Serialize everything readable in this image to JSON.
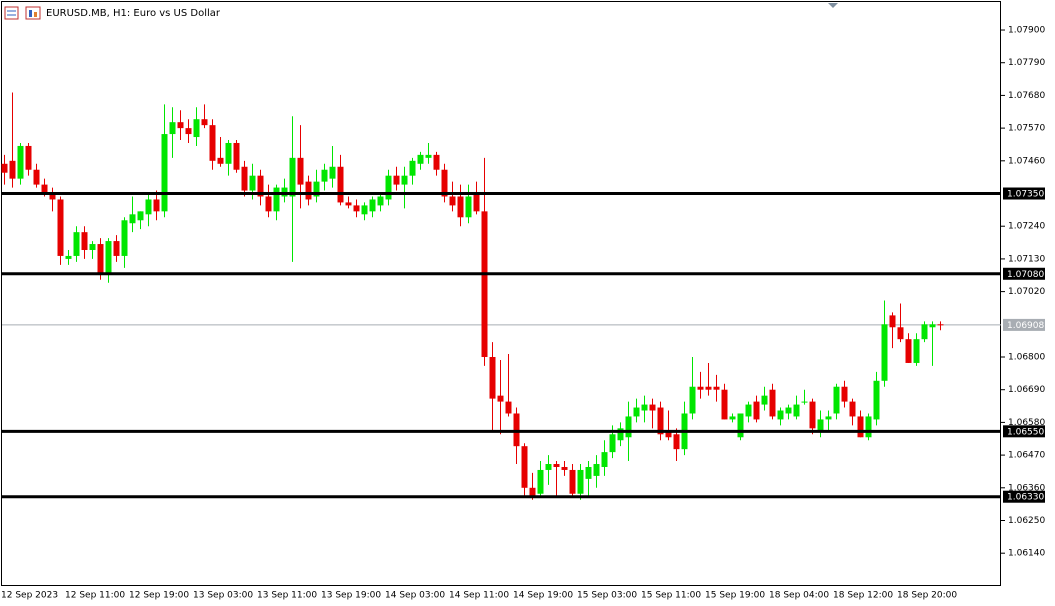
{
  "chart_data": {
    "type": "candlestick",
    "title": "EURUSD.MB, H1:  Euro vs US Dollar",
    "up_color": "#00e600",
    "down_color": "#e60000",
    "grid": false,
    "categories": [
      "12 Sep 2023",
      null,
      null,
      null,
      null,
      null,
      null,
      null,
      "12 Sep 11:00",
      null,
      null,
      null,
      null,
      null,
      null,
      null,
      "12 Sep 19:00",
      null,
      null,
      null,
      null,
      null,
      null,
      null,
      "13 Sep 03:00",
      null,
      null,
      null,
      null,
      null,
      null,
      null,
      "13 Sep 11:00",
      null,
      null,
      null,
      null,
      null,
      null,
      null,
      "13 Sep 19:00",
      null,
      null,
      null,
      null,
      null,
      null,
      null,
      "14 Sep 03:00",
      null,
      null,
      null,
      null,
      null,
      null,
      null,
      "14 Sep 11:00",
      null,
      null,
      null,
      null,
      null,
      null,
      null,
      "14 Sep 19:00",
      null,
      null,
      null,
      null,
      null,
      null,
      null,
      "15 Sep 03:00",
      null,
      null,
      null,
      null,
      null,
      null,
      null,
      "15 Sep 11:00",
      null,
      null,
      null,
      null,
      null,
      null,
      null,
      "15 Sep 19:00",
      null,
      null,
      null,
      null,
      null,
      null,
      null,
      "18 Sep 04:00",
      null,
      null,
      null,
      null,
      null,
      null,
      null,
      "18 Sep 12:00",
      null,
      null,
      null,
      null,
      null,
      null,
      null,
      "18 Sep 20:00",
      null,
      null,
      null,
      null,
      null
    ],
    "open": [
      1.0745,
      1.0746,
      1.074,
      1.0751,
      1.0743,
      1.0738,
      1.0735,
      1.0733,
      1.0713,
      1.0714,
      1.0722,
      1.0716,
      1.0718,
      1.0708,
      1.0719,
      1.0714,
      1.0725,
      1.0726,
      1.0728,
      1.0733,
      1.0729,
      1.0755,
      1.0759,
      1.0757,
      1.0754,
      1.076,
      1.0758,
      1.0747,
      1.0745,
      1.0752,
      1.0744,
      1.0736,
      1.0741,
      1.0734,
      1.0729,
      1.0734,
      1.0734,
      1.0747,
      1.0739,
      1.0734,
      1.0739,
      1.074,
      1.0744,
      1.0732,
      1.0731,
      1.0728,
      1.0729,
      1.0731,
      1.0733,
      1.0741,
      1.0738,
      1.0741,
      1.0745,
      1.0747,
      1.0748,
      1.0743,
      1.0734,
      1.0734,
      1.0727,
      1.0735,
      1.0729,
      1.068,
      1.0667,
      1.0665,
      1.0661,
      1.065,
      1.0636,
      1.0634,
      1.0642,
      1.0644,
      1.0643,
      1.0642,
      1.0634,
      1.0639,
      1.064,
      1.0643,
      1.0648,
      1.0652,
      1.0653,
      1.066,
      1.0662,
      1.0664,
      1.0663,
      1.0655,
      1.0654,
      1.0649,
      1.0661,
      1.067,
      1.067,
      1.067,
      1.0669,
      1.0659,
      1.0653,
      1.066,
      1.0665,
      1.0664,
      1.0669,
      1.0659,
      1.0661,
      1.066,
      1.0665,
      1.0665,
      1.0655,
      1.0659,
      1.0661,
      1.067,
      1.0665,
      1.066,
      1.0653,
      1.0659,
      1.0672,
      1.0694,
      1.069,
      1.0686,
      1.0678,
      1.0686,
      1.069,
      1.0691
    ],
    "high": [
      1.0748,
      1.0769,
      1.0752,
      1.0752,
      1.0745,
      1.074,
      1.0737,
      1.0734,
      1.0716,
      1.0724,
      1.0724,
      1.0719,
      1.072,
      1.072,
      1.0721,
      1.0727,
      1.0734,
      1.0729,
      1.0735,
      1.0736,
      1.0765,
      1.0764,
      1.0763,
      1.076,
      1.0764,
      1.0765,
      1.076,
      1.0754,
      1.0753,
      1.0753,
      1.0746,
      1.0745,
      1.0743,
      1.0738,
      1.0738,
      1.074,
      1.0761,
      1.0758,
      1.0741,
      1.0743,
      1.0745,
      1.0751,
      1.0748,
      1.0734,
      1.0733,
      1.0732,
      1.0734,
      1.0735,
      1.0743,
      1.0744,
      1.0744,
      1.0747,
      1.0749,
      1.0752,
      1.0749,
      1.0745,
      1.0739,
      1.0738,
      1.0738,
      1.0739,
      1.0747,
      1.0685,
      1.0679,
      1.0681,
      1.0663,
      1.0651,
      1.0641,
      1.0645,
      1.0647,
      1.0645,
      1.0645,
      1.0644,
      1.0644,
      1.0645,
      1.0647,
      1.0652,
      1.0657,
      1.0658,
      1.0665,
      1.0666,
      1.0667,
      1.0666,
      1.0665,
      1.0662,
      1.0656,
      1.0665,
      1.068,
      1.0675,
      1.0678,
      1.0674,
      1.0671,
      1.0661,
      1.0661,
      1.0665,
      1.0667,
      1.067,
      1.0671,
      1.0663,
      1.0664,
      1.0667,
      1.0669,
      1.0666,
      1.0662,
      1.0662,
      1.0671,
      1.0672,
      1.0666,
      1.0662,
      1.0661,
      1.0675,
      1.0699,
      1.0695,
      1.0698,
      1.0688,
      1.0688,
      1.0692,
      1.0692,
      1.0692
    ],
    "low": [
      1.0738,
      1.0737,
      1.0738,
      1.0741,
      1.0737,
      1.0734,
      1.0729,
      1.0711,
      1.0711,
      1.0712,
      1.0713,
      1.0713,
      1.0706,
      1.0705,
      1.0712,
      1.071,
      1.0722,
      1.0723,
      1.0724,
      1.0726,
      1.0727,
      1.0747,
      1.0753,
      1.0752,
      1.0751,
      1.0757,
      1.0743,
      1.0744,
      1.0741,
      1.0742,
      1.0734,
      1.0733,
      1.0731,
      1.0727,
      1.0726,
      1.0732,
      1.0712,
      1.073,
      1.0731,
      1.0732,
      1.0736,
      1.0737,
      1.0731,
      1.073,
      1.0727,
      1.0726,
      1.0727,
      1.0729,
      1.0731,
      1.0736,
      1.073,
      1.0738,
      1.0743,
      1.0745,
      1.0741,
      1.0732,
      1.0729,
      1.0724,
      1.0725,
      1.0728,
      1.0677,
      1.0655,
      1.0654,
      1.066,
      1.0644,
      1.0633,
      1.0632,
      1.0633,
      1.0637,
      1.0633,
      1.064,
      1.0633,
      1.0632,
      1.0633,
      1.0636,
      1.064,
      1.0646,
      1.065,
      1.0645,
      1.0658,
      1.0658,
      1.0656,
      1.0652,
      1.0652,
      1.0645,
      1.0647,
      1.0659,
      1.0666,
      1.0667,
      1.0665,
      1.0659,
      1.0658,
      1.0652,
      1.0658,
      1.0658,
      1.0662,
      1.0659,
      1.0657,
      1.0659,
      1.0659,
      1.0664,
      1.0654,
      1.0653,
      1.0655,
      1.0659,
      1.0663,
      1.0657,
      1.0653,
      1.0652,
      1.0657,
      1.067,
      1.0683,
      1.0685,
      1.0678,
      1.0677,
      1.0685,
      1.0677,
      1.0689
    ],
    "close": [
      1.0742,
      1.074,
      1.0751,
      1.0743,
      1.0738,
      1.0735,
      1.0733,
      1.0714,
      1.0714,
      1.0722,
      1.0716,
      1.0718,
      1.0708,
      1.0719,
      1.0714,
      1.0726,
      1.0728,
      1.0729,
      1.0733,
      1.0729,
      1.0755,
      1.0759,
      1.0757,
      1.0755,
      1.076,
      1.0758,
      1.0746,
      1.0745,
      1.0752,
      1.0743,
      1.0736,
      1.0741,
      1.0734,
      1.0729,
      1.0737,
      1.0737,
      1.0747,
      1.0738,
      1.0733,
      1.0739,
      1.0743,
      1.0744,
      1.0732,
      1.0731,
      1.0729,
      1.0731,
      1.0733,
      1.0734,
      1.0741,
      1.0738,
      1.0741,
      1.0746,
      1.0748,
      1.0748,
      1.0743,
      1.0734,
      1.0731,
      1.0727,
      1.0734,
      1.0729,
      1.068,
      1.0666,
      1.0665,
      1.0661,
      1.065,
      1.0636,
      1.0633,
      1.0642,
      1.0644,
      1.0643,
      1.0642,
      1.0634,
      1.0642,
      1.0643,
      1.0644,
      1.0648,
      1.0654,
      1.0656,
      1.066,
      1.0663,
      1.0664,
      1.0662,
      1.0654,
      1.0653,
      1.0649,
      1.0661,
      1.067,
      1.0669,
      1.0669,
      1.0669,
      1.0659,
      1.066,
      1.0661,
      1.0664,
      1.0659,
      1.0667,
      1.066,
      1.0662,
      1.0663,
      1.0664,
      1.0665,
      1.0656,
      1.0659,
      1.066,
      1.067,
      1.0665,
      1.066,
      1.0653,
      1.066,
      1.0672,
      1.0691,
      1.069,
      1.0686,
      1.0678,
      1.0686,
      1.0691,
      1.0691,
      1.06908
    ],
    "ylim": [
      1.06033,
      1.08001
    ],
    "yticks": [
      {
        "value": 1.079,
        "label": "1.07900"
      },
      {
        "value": 1.0779,
        "label": "1.07790"
      },
      {
        "value": 1.0768,
        "label": "1.07680"
      },
      {
        "value": 1.0757,
        "label": "1.07570"
      },
      {
        "value": 1.0746,
        "label": "1.07460"
      },
      {
        "value": 1.0724,
        "label": "1.07240"
      },
      {
        "value": 1.0713,
        "label": "1.07130"
      },
      {
        "value": 1.0702,
        "label": "1.07020"
      },
      {
        "value": 1.068,
        "label": "1.06800"
      },
      {
        "value": 1.0669,
        "label": "1.06690"
      },
      {
        "value": 1.0658,
        "label": "1.06580"
      },
      {
        "value": 1.0647,
        "label": "1.06470"
      },
      {
        "value": 1.0636,
        "label": "1.06360"
      },
      {
        "value": 1.0625,
        "label": "1.06250"
      },
      {
        "value": 1.0614,
        "label": "1.06140"
      }
    ],
    "levels": [
      {
        "value": 1.0735,
        "label": "1.07350"
      },
      {
        "value": 1.0708,
        "label": "1.07080"
      },
      {
        "value": 1.0655,
        "label": "1.06550"
      },
      {
        "value": 1.0633,
        "label": "1.06330"
      }
    ],
    "price_line": {
      "value": 1.06908,
      "label": "1.06908"
    }
  }
}
